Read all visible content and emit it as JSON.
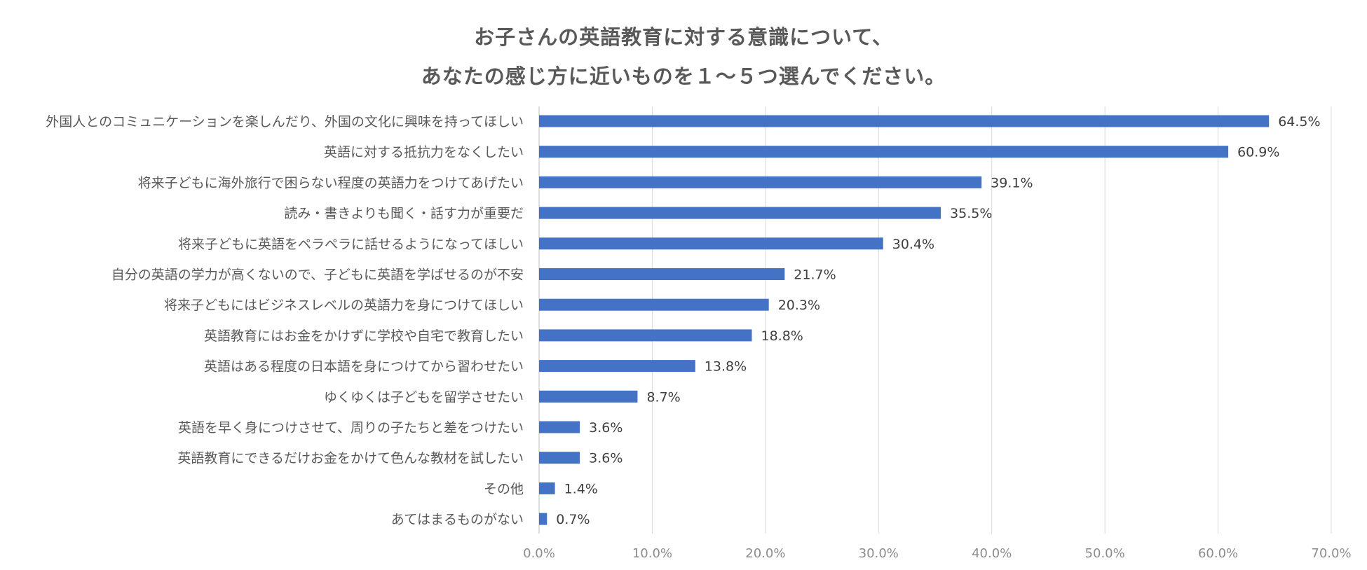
{
  "chart_data": {
    "type": "bar",
    "orientation": "horizontal",
    "title_lines": [
      "お子さんの英語教育に対する意識について、",
      "あなたの感じ方に近いものを１～５つ選んでください。"
    ],
    "categories": [
      "外国人とのコミュニケーションを楽しんだり、外国の文化に興味を持ってほしい",
      "英語に対する抵抗力をなくしたい",
      "将来子どもに海外旅行で困らない程度の英語力をつけてあげたい",
      "読み・書きよりも聞く・話す力が重要だ",
      "将来子どもに英語をペラペラに話せるようになってほしい",
      "自分の英語の学力が高くないので、子どもに英語を学ばせるのが不安",
      "将来子どもにはビジネスレベルの英語力を身につけてほしい",
      "英語教育にはお金をかけずに学校や自宅で教育したい",
      "英語はある程度の日本語を身につけてから習わせたい",
      "ゆくゆくは子どもを留学させたい",
      "英語を早く身につけさせて、周りの子たちと差をつけたい",
      "英語教育にできるだけお金をかけて色んな教材を試したい",
      "その他",
      "あてはまるものがない"
    ],
    "values": [
      64.5,
      60.9,
      39.1,
      35.5,
      30.4,
      21.7,
      20.3,
      18.8,
      13.8,
      8.7,
      3.6,
      3.6,
      1.4,
      0.7
    ],
    "value_labels": [
      "64.5%",
      "60.9%",
      "39.1%",
      "35.5%",
      "30.4%",
      "21.7%",
      "20.3%",
      "18.8%",
      "13.8%",
      "8.7%",
      "3.6%",
      "3.6%",
      "1.4%",
      "0.7%"
    ],
    "xlim": [
      0,
      70
    ],
    "x_ticks": [
      "0.0%",
      "10.0%",
      "20.0%",
      "30.0%",
      "40.0%",
      "50.0%",
      "60.0%",
      "70.0%"
    ],
    "grid": true,
    "legend": "none",
    "bar_color": "#4472C4",
    "grid_color": "#d9d9d9"
  }
}
